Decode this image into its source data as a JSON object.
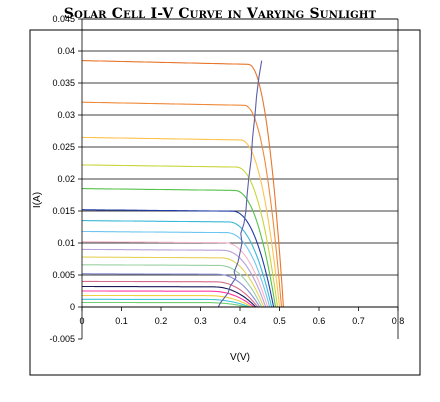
{
  "chart_data": {
    "type": "line",
    "title": "Solar Cell I-V Curve in Varying Sunlight",
    "xlabel": "V(V)",
    "ylabel": "I(A)",
    "xlim": [
      0,
      0.8
    ],
    "ylim": [
      -0.005,
      0.045
    ],
    "x_ticks": [
      "0",
      "0.1",
      "0.2",
      "0.3",
      "0.4",
      "0.5",
      "0.6",
      "0.7",
      "0.8"
    ],
    "y_ticks": [
      "-0.005",
      "0",
      "0.005",
      "0.01",
      "0.015",
      "0.02",
      "0.025",
      "0.03",
      "0.035",
      "0.04",
      "0.045"
    ],
    "grid": "horizontal",
    "legend": "none",
    "series": [
      {
        "isc": 0.0385,
        "voc": 0.51,
        "vk": 0.42,
        "xend": 0.7,
        "color": "#e8762b"
      },
      {
        "isc": 0.032,
        "voc": 0.505,
        "vk": 0.41,
        "xend": 0.49,
        "color": "#f08a3a"
      },
      {
        "isc": 0.0265,
        "voc": 0.5,
        "vk": 0.4,
        "xend": 0.49,
        "color": "#ffc24d"
      },
      {
        "isc": 0.0222,
        "voc": 0.495,
        "vk": 0.39,
        "xend": 0.49,
        "color": "#c8d63a"
      },
      {
        "isc": 0.0185,
        "voc": 0.49,
        "vk": 0.385,
        "xend": 0.49,
        "color": "#55c24a"
      },
      {
        "isc": 0.0152,
        "voc": 0.485,
        "vk": 0.38,
        "xend": 0.485,
        "color": "#1f3aa6"
      },
      {
        "isc": 0.0135,
        "voc": 0.48,
        "vk": 0.37,
        "xend": 0.48,
        "color": "#3ab8d8"
      },
      {
        "isc": 0.0118,
        "voc": 0.475,
        "vk": 0.365,
        "xend": 0.475,
        "color": "#6ec6f0"
      },
      {
        "isc": 0.0102,
        "voc": 0.47,
        "vk": 0.36,
        "xend": 0.47,
        "color": "#f4b6c8"
      },
      {
        "isc": 0.009,
        "voc": 0.465,
        "vk": 0.355,
        "xend": 0.465,
        "color": "#b8a0d8"
      },
      {
        "isc": 0.0078,
        "voc": 0.46,
        "vk": 0.35,
        "xend": 0.46,
        "color": "#e6d25a"
      },
      {
        "isc": 0.0066,
        "voc": 0.455,
        "vk": 0.345,
        "xend": 0.455,
        "color": "#9ad0a0"
      },
      {
        "isc": 0.0052,
        "voc": 0.45,
        "vk": 0.34,
        "xend": 0.45,
        "color": "#8a8fd8"
      },
      {
        "isc": 0.004,
        "voc": 0.445,
        "vk": 0.335,
        "xend": 0.445,
        "color": "#d46a8a"
      },
      {
        "isc": 0.0032,
        "voc": 0.44,
        "vk": 0.33,
        "xend": 0.44,
        "color": "#1a1a5a"
      },
      {
        "isc": 0.0025,
        "voc": 0.435,
        "vk": 0.325,
        "xend": 0.435,
        "color": "#ff3aa0"
      },
      {
        "isc": 0.0018,
        "voc": 0.43,
        "vk": 0.32,
        "xend": 0.43,
        "color": "#f0d040"
      },
      {
        "isc": 0.0012,
        "voc": 0.425,
        "vk": 0.315,
        "xend": 0.425,
        "color": "#40c8d8"
      },
      {
        "isc": 0.0007,
        "voc": 0.42,
        "vk": 0.31,
        "xend": 0.42,
        "color": "#70d070"
      }
    ],
    "mpp_curve": {
      "color": "#5a5fa8",
      "points": [
        [
          0.345,
          0.0
        ],
        [
          0.35,
          0.0006
        ],
        [
          0.36,
          0.0014
        ],
        [
          0.37,
          0.0022
        ],
        [
          0.375,
          0.0032
        ],
        [
          0.39,
          0.0046
        ],
        [
          0.385,
          0.0055
        ],
        [
          0.395,
          0.007
        ],
        [
          0.4,
          0.0085
        ],
        [
          0.405,
          0.01
        ],
        [
          0.402,
          0.0115
        ],
        [
          0.41,
          0.013
        ],
        [
          0.415,
          0.015
        ],
        [
          0.418,
          0.0175
        ],
        [
          0.422,
          0.02
        ],
        [
          0.428,
          0.023
        ],
        [
          0.432,
          0.0265
        ],
        [
          0.438,
          0.03
        ],
        [
          0.442,
          0.033
        ],
        [
          0.448,
          0.036
        ],
        [
          0.455,
          0.0385
        ]
      ]
    }
  }
}
